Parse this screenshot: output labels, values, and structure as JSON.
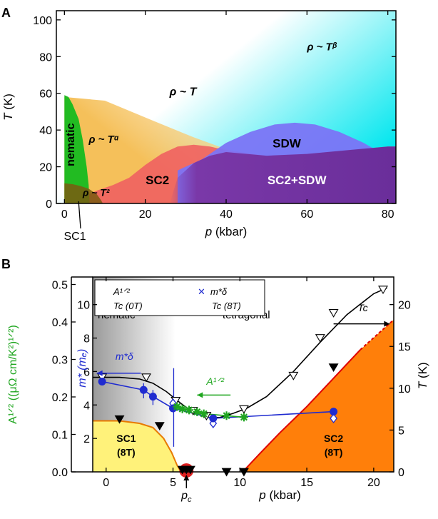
{
  "chart_data": [
    {
      "panel": "A",
      "type": "area",
      "title": "",
      "xlabel_symbol": "p",
      "xlabel_unit": "(kbar)",
      "ylabel": "T (K)",
      "xlim": [
        -2,
        82
      ],
      "ylim": [
        0,
        105
      ],
      "xticks": [
        0,
        20,
        40,
        60,
        80
      ],
      "yticks": [
        0,
        20,
        40,
        60,
        80,
        100
      ],
      "colors": {
        "nematic": "#22bb22",
        "sc1": "#7a5a10",
        "sc2": "#f06060",
        "sdw": "#7b74f5",
        "sc2_sdw": "#7a38a8",
        "t_alpha": "#f7d080",
        "t_beta": "#00e6ee"
      },
      "regions": [
        {
          "name": "nematic",
          "label": "nematic",
          "boundary": [
            [
              0,
              0
            ],
            [
              0,
              59
            ],
            [
              1,
              58
            ],
            [
              2,
              54
            ],
            [
              3.5,
              46
            ],
            [
              4.5,
              35
            ],
            [
              5.5,
              20
            ],
            [
              6,
              10
            ],
            [
              6.2,
              0
            ]
          ]
        },
        {
          "name": "SC1",
          "label": "SC1",
          "boundary": [
            [
              0,
              0
            ],
            [
              0,
              11
            ],
            [
              2,
              10.5
            ],
            [
              4,
              9.5
            ],
            [
              6,
              8
            ],
            [
              8,
              5
            ],
            [
              9,
              2
            ],
            [
              9.5,
              0
            ]
          ]
        },
        {
          "name": "SC2",
          "label": "SC2",
          "boundary": [
            [
              3,
              0
            ],
            [
              5,
              4
            ],
            [
              8,
              7
            ],
            [
              12,
              10
            ],
            [
              16,
              14
            ],
            [
              20,
              21
            ],
            [
              24,
              27
            ],
            [
              28,
              31
            ],
            [
              32,
              32
            ],
            [
              36,
              31
            ],
            [
              40,
              29
            ],
            [
              50,
              26
            ],
            [
              60,
              27
            ],
            [
              70,
              29
            ],
            [
              80,
              31
            ],
            [
              82,
              31
            ],
            [
              82,
              0
            ]
          ]
        },
        {
          "name": "SDW",
          "label": "SDW",
          "boundary": [
            [
              28,
              18
            ],
            [
              34,
              24
            ],
            [
              40,
              33
            ],
            [
              46,
              39
            ],
            [
              52,
              43
            ],
            [
              57,
              44
            ],
            [
              62,
              43
            ],
            [
              68,
              39
            ],
            [
              74,
              33
            ],
            [
              78,
              28
            ],
            [
              82,
              24
            ],
            [
              82,
              0
            ],
            [
              28,
              0
            ]
          ]
        }
      ],
      "labels": {
        "rho_beta": "ρ ~ Tᵝ",
        "rho_t": "ρ ~ T",
        "rho_alpha": "ρ ~ Tᵅ",
        "rho_t2": "ρ ~ T²",
        "sdw": "SDW",
        "sc2": "SC2",
        "sc2_sdw": "SC2+SDW",
        "nematic": "nematic",
        "sc1": "SC1"
      }
    },
    {
      "panel": "B",
      "type": "scatter",
      "title": "",
      "xlabel_symbol": "p",
      "xlabel_unit": "(kbar)",
      "ylabel_left": "A¹ᐟ² ((μΩ cm/K²)¹ᐟ²)",
      "ylabel_inner": "m* (mₑ)",
      "ylabel_right": "T (K)",
      "xlim": [
        -1,
        21.5
      ],
      "ylim_left": [
        0,
        0.52
      ],
      "ylim_right": [
        0,
        23.3
      ],
      "xticks": [
        0,
        5,
        10,
        15,
        20
      ],
      "yticks_left": [
        0.0,
        0.1,
        0.2,
        0.3,
        0.4,
        0.5
      ],
      "yticks_inner": [
        2,
        4,
        6,
        8,
        10
      ],
      "yticks_right": [
        0,
        5,
        10,
        15,
        20
      ],
      "region_labels": {
        "nematic": "nematic",
        "tetragonal": "tetragonal",
        "pc": "pc"
      },
      "legend": {
        "a_half": "A¹ᐟ²",
        "m_star": "m*δ",
        "tc_0t": "Tc (0T)",
        "tc_8t": "Tc (8T)"
      },
      "annotations": {
        "m_star": "m*δ",
        "a_half": "A¹ᐟ²",
        "tc": "Tc",
        "sc1_8t": [
          "SC1",
          "(8T)"
        ],
        "sc2_8t": [
          "SC2",
          "(8T)"
        ]
      },
      "series": [
        {
          "name": "Tc (0T)",
          "marker": "open-triangle-down",
          "axis": "right",
          "x": [
            -0.3,
            3,
            5.2,
            6.5,
            7.5,
            10.3,
            14,
            16,
            17,
            20.7
          ],
          "y": [
            11.3,
            11.3,
            8.5,
            7.3,
            6.7,
            7.5,
            11.5,
            16,
            19,
            21.8
          ]
        },
        {
          "name": "Tc (8T)",
          "marker": "filled-triangle-down",
          "axis": "right",
          "x": [
            1,
            4,
            6,
            9,
            10.3,
            17
          ],
          "y": [
            6.3,
            5.5,
            0,
            0,
            0,
            12.5
          ]
        },
        {
          "name": "m*δ",
          "marker": "filled-circle",
          "axis": "inner",
          "x": [
            -0.3,
            2.8,
            3.5,
            5,
            8,
            17
          ],
          "y": [
            5.4,
            4.9,
            4.5,
            3.8,
            3.2,
            3.6
          ]
        },
        {
          "name": "A¹ᐟ²",
          "marker": "asterisk",
          "axis": "left",
          "x": [
            5.3,
            5.7,
            6.2,
            6.8,
            7.3,
            9,
            10.3
          ],
          "y": [
            0.174,
            0.168,
            0.165,
            0.16,
            0.155,
            0.15,
            0.146
          ]
        },
        {
          "name": "m*δ (open)",
          "marker": "open-diamond",
          "axis": "inner",
          "x": [
            5,
            8,
            17
          ],
          "y": [
            4.1,
            2.9,
            3.2
          ]
        }
      ],
      "sc1_boundary": [
        [
          -1,
          6.1
        ],
        [
          1,
          6.1
        ],
        [
          2.5,
          5.8
        ],
        [
          3.5,
          5.3
        ],
        [
          4.3,
          4.0
        ],
        [
          4.9,
          2.3
        ],
        [
          5.3,
          0.8
        ],
        [
          5.6,
          0
        ]
      ],
      "sc2_boundary": [
        [
          10.2,
          0
        ],
        [
          11.5,
          2.2
        ],
        [
          13,
          4.7
        ],
        [
          15,
          7.8
        ],
        [
          17,
          11.2
        ],
        [
          19,
          14.6
        ],
        [
          21.5,
          18.2
        ]
      ],
      "colors": {
        "sc1": "#fff27a",
        "sc2": "#ff7f0a",
        "a_half": "#1fa61f",
        "m_star": "#1f2bd0",
        "pc_marker": "#e02020"
      }
    }
  ]
}
